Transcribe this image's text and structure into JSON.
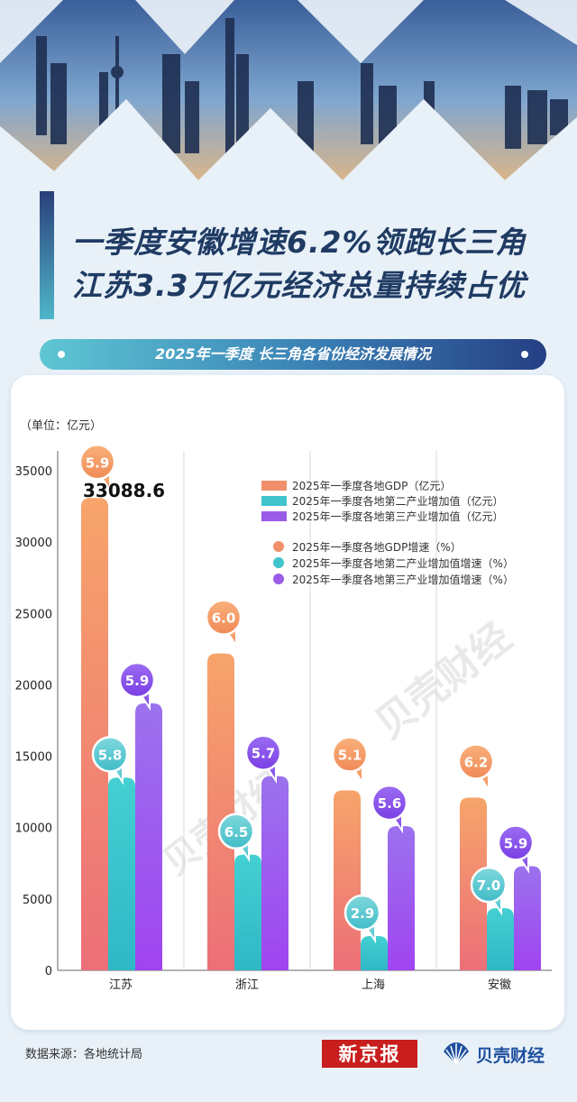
{
  "headline": {
    "line1": "一季度安徽增速6.2%领跑长三角",
    "line2": "江苏3.3万亿元经济总量持续占优"
  },
  "subtitle": "2025年一季度 长三角各省份经济发展情况",
  "watermark": "贝壳财经",
  "footer": {
    "source": "数据来源：各地统计局",
    "logo_xinjingbao": "新京报",
    "logo_beike": "贝壳财经"
  },
  "colors": {
    "gdp": "#f0906a",
    "secondary": "#3fc4cc",
    "tertiary": "#9a5ce8",
    "title": "#1f3b63"
  },
  "chart_data": {
    "type": "bar",
    "unit_label": "（单位：亿元）",
    "categories": [
      "江苏",
      "浙江",
      "上海",
      "安徽"
    ],
    "ylim": [
      0,
      35000
    ],
    "yticks": [
      0,
      5000,
      10000,
      15000,
      20000,
      25000,
      30000,
      35000
    ],
    "ytick_labels": [
      "0",
      "5000",
      "10000",
      "15000",
      "20000",
      "25000",
      "30000",
      "35000"
    ],
    "series": [
      {
        "name": "2025年一季度各地GDP（亿元）",
        "values": [
          33088.6,
          22200,
          12600,
          12100
        ]
      },
      {
        "name": "2025年一季度各地第二产业增加值（亿元）",
        "values": [
          13500,
          8100,
          2400,
          4350
        ]
      },
      {
        "name": "2025年一季度各地第三产业增加值（亿元）",
        "values": [
          18700,
          13600,
          10100,
          7300
        ]
      }
    ],
    "growth_series": [
      {
        "name": "2025年一季度各地GDP增速（%）",
        "values": [
          "5.9",
          "6.0",
          "5.1",
          "6.2"
        ]
      },
      {
        "name": "2025年一季度各地第二产业增加值增速（%）",
        "values": [
          "5.8",
          "6.5",
          "2.9",
          "7.0"
        ]
      },
      {
        "name": "2025年一季度各地第三产业增加值增速（%）",
        "values": [
          "5.9",
          "5.7",
          "5.6",
          "5.9"
        ]
      }
    ],
    "highlight_value": "33088.6"
  }
}
